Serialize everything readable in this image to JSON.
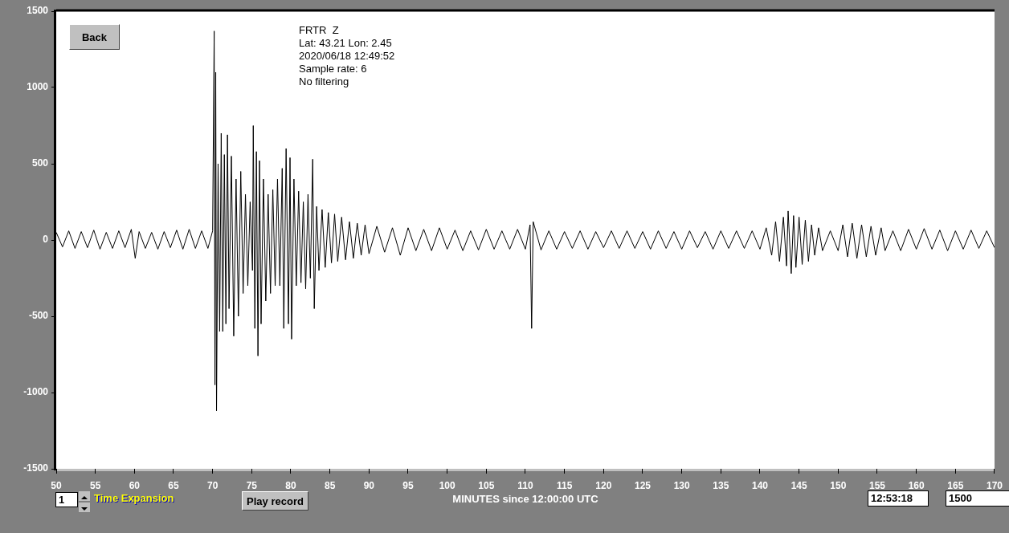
{
  "chart_data": {
    "type": "line",
    "xlabel": "MINUTES since 12:00:00 UTC",
    "xlim": [
      50,
      170
    ],
    "ylim": [
      -1500,
      1500
    ],
    "xticks": [
      50,
      55,
      60,
      65,
      70,
      75,
      80,
      85,
      90,
      95,
      100,
      105,
      110,
      115,
      120,
      125,
      130,
      135,
      140,
      145,
      150,
      155,
      160,
      165,
      170
    ],
    "yticks": [
      -1500,
      -1000,
      -500,
      0,
      500,
      1000,
      1500
    ],
    "grid": false,
    "legend": false,
    "marker": "none",
    "line_style": "solid",
    "annotations": [
      "FRTR  Z",
      "Lat: 43.21 Lon: 2.45",
      "2020/06/18 12:49:52",
      "Sample rate: 6",
      "No filtering",
      "Back",
      "1",
      "Time Expansion",
      "Play record",
      "12:53:18",
      "1500"
    ],
    "series": [
      {
        "color": "#000000",
        "x": [
          50,
          50.8,
          51.6,
          52.4,
          53.2,
          54,
          54.8,
          55.6,
          56.4,
          57.2,
          58,
          58.8,
          59.6,
          60.1,
          60.6,
          61.4,
          62.2,
          63,
          63.8,
          64.6,
          65.4,
          66.2,
          67,
          67.8,
          68.6,
          69.4,
          70,
          70.2,
          70.3,
          70.4,
          70.5,
          70.7,
          70.9,
          71.1,
          71.3,
          71.5,
          71.7,
          71.9,
          72.1,
          72.4,
          72.7,
          73,
          73.3,
          73.6,
          73.9,
          74.2,
          74.5,
          74.8,
          75.1,
          75.2,
          75.4,
          75.6,
          75.8,
          76,
          76.2,
          76.5,
          76.8,
          77.1,
          77.4,
          77.7,
          78,
          78.3,
          78.6,
          78.9,
          79.1,
          79.4,
          79.7,
          79.9,
          80.1,
          80.4,
          80.7,
          81,
          81.3,
          81.6,
          81.9,
          82.2,
          82.5,
          82.8,
          83,
          83.3,
          83.6,
          84,
          84.4,
          84.8,
          85.2,
          85.6,
          86,
          86.5,
          87,
          87.5,
          88,
          88.5,
          89,
          89.5,
          90,
          91,
          92,
          93,
          94,
          95,
          96,
          97,
          98,
          99,
          100,
          101,
          102,
          103,
          104,
          105,
          106,
          107,
          108,
          109,
          110,
          110.6,
          110.8,
          111,
          112,
          113,
          114,
          115,
          116,
          117,
          118,
          119,
          120,
          121,
          122,
          123,
          124,
          125,
          126,
          127,
          128,
          129,
          130,
          131,
          132,
          133,
          134,
          135,
          136,
          137,
          138,
          139,
          140,
          140.8,
          141.5,
          142,
          142.5,
          143,
          143.4,
          143.6,
          144,
          144.3,
          144.6,
          145,
          145.4,
          145.8,
          146.2,
          146.6,
          147,
          147.5,
          148,
          149,
          150,
          150.6,
          151.2,
          151.8,
          152.4,
          153,
          153.6,
          154.2,
          154.8,
          155.5,
          156,
          157,
          158,
          159,
          160,
          161,
          162,
          163,
          164,
          165,
          166,
          167,
          168,
          169,
          170
        ],
        "values": [
          50,
          -45,
          60,
          -55,
          55,
          -50,
          65,
          -60,
          50,
          -55,
          60,
          -50,
          70,
          -120,
          55,
          -55,
          50,
          -60,
          55,
          -50,
          65,
          -60,
          70,
          -55,
          60,
          -55,
          60,
          1370,
          -950,
          1100,
          -1120,
          500,
          -600,
          700,
          -600,
          560,
          -550,
          690,
          -450,
          550,
          -630,
          400,
          -500,
          450,
          -350,
          300,
          -300,
          250,
          -200,
          750,
          -580,
          580,
          -760,
          520,
          -550,
          400,
          -400,
          300,
          -350,
          330,
          -300,
          400,
          -300,
          470,
          -580,
          600,
          -550,
          540,
          -650,
          400,
          -300,
          320,
          -280,
          250,
          -320,
          300,
          -250,
          530,
          -450,
          220,
          -200,
          200,
          -180,
          180,
          -150,
          170,
          -140,
          150,
          -130,
          120,
          -120,
          110,
          -100,
          100,
          -90,
          90,
          -80,
          80,
          -100,
          80,
          -70,
          70,
          -70,
          80,
          -60,
          65,
          -70,
          60,
          -65,
          70,
          -60,
          60,
          -60,
          70,
          -60,
          100,
          -580,
          120,
          -65,
          60,
          -60,
          55,
          -55,
          60,
          -60,
          55,
          -50,
          60,
          -55,
          60,
          -55,
          55,
          -60,
          60,
          -55,
          55,
          -60,
          60,
          -50,
          55,
          -60,
          60,
          -55,
          60,
          -55,
          60,
          -60,
          80,
          -100,
          120,
          -140,
          150,
          -170,
          190,
          -220,
          160,
          -180,
          150,
          -160,
          130,
          -140,
          100,
          -100,
          80,
          -70,
          60,
          -70,
          100,
          -110,
          110,
          -120,
          100,
          -110,
          90,
          -100,
          80,
          -70,
          60,
          -70,
          70,
          -60,
          75,
          -60,
          65,
          -70,
          60,
          -60,
          65,
          -55,
          60,
          -50
        ]
      }
    ]
  }
}
